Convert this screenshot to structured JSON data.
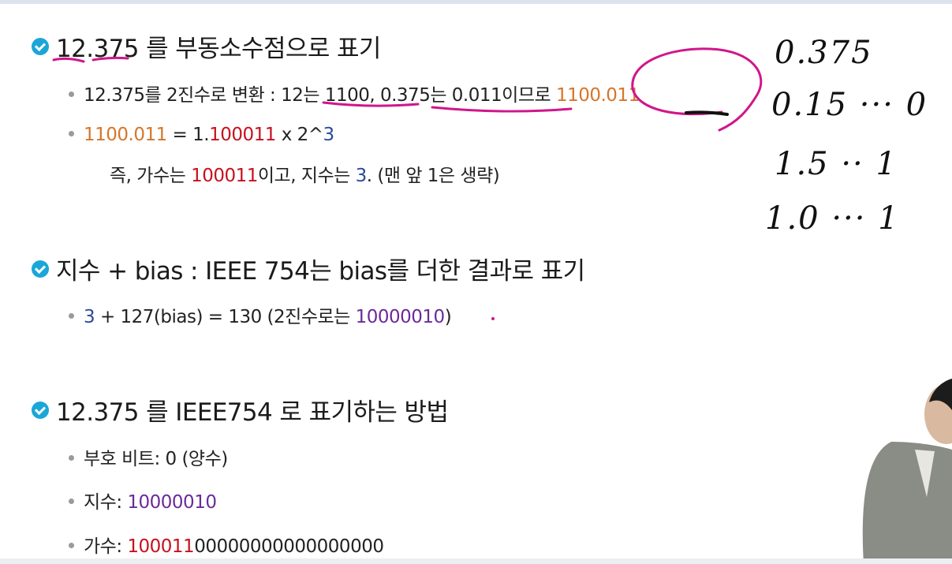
{
  "section1": {
    "heading": "12.375 를 부동소수점으로 표기",
    "bullet1": {
      "prefix": "12.375를 2진수로 변환 : ",
      "t1": "12는 1100",
      "t2": ", ",
      "t3": "0.375는 0.011",
      "t4": "이므로 ",
      "t5": "1100.011"
    },
    "bullet2": {
      "a": "1100.011",
      "b": " = 1.",
      "c": "100011",
      "d": " x 2^",
      "e": "3"
    },
    "bullet2_cont": {
      "a": "즉, 가수는 ",
      "b": "100011",
      "c": "이고, 지수는 ",
      "d": "3",
      "e": ". (맨 앞 1은 생략)"
    }
  },
  "section2": {
    "heading": "지수 + bias : IEEE 754는 bias를 더한 결과로 표기",
    "bullet1": {
      "a": "3",
      "b": " + 127(bias) = 130 (2진수로는 ",
      "c": "10000010",
      "d": ")"
    }
  },
  "section3": {
    "heading": "12.375 를 IEEE754 로 표기하는 방법",
    "sign": {
      "label": "부호 비트: ",
      "value": "0 (양수)"
    },
    "exponent": {
      "label": "지수: ",
      "value": "10000010"
    },
    "mantissa": {
      "label": "가수: ",
      "value_red": "100011",
      "value_rest": "00000000000000000"
    }
  },
  "handwriting": {
    "line1": "0.375",
    "line2": "0.15  ···  0",
    "line3": "1.5    ·· 1",
    "line4": "1.0  ··· 1"
  },
  "colors": {
    "check_icon": "#1aa6d8",
    "orange": "#d5762a",
    "red": "#c8101e",
    "blue": "#2a4a9a",
    "purple": "#6b2a9a",
    "annotation": "#d0168b"
  }
}
